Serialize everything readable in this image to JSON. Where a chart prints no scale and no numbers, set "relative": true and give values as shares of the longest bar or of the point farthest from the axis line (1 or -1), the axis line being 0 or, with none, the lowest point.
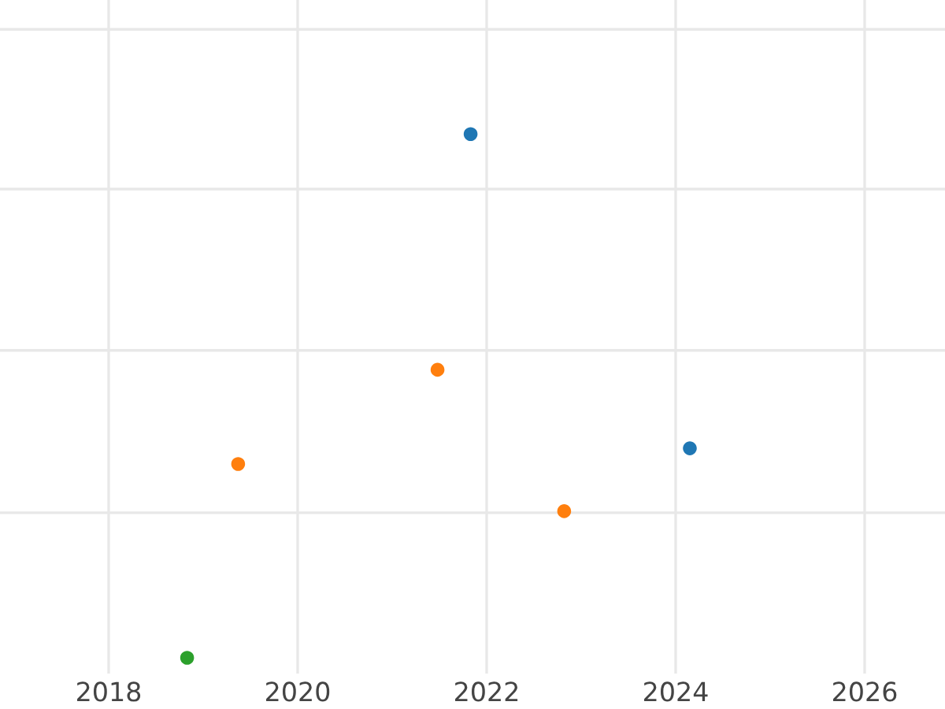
{
  "chart_data": {
    "type": "scatter",
    "relative": true,
    "grid": true,
    "legend": false,
    "marker": "circle",
    "xlim": [
      2016.85,
      2026.85
    ],
    "xticks": [
      2018,
      2020,
      2022,
      2024,
      2026
    ],
    "series": [
      {
        "color": "#1f77b4",
        "x": [
          2021.83,
          2024.15
        ],
        "values": [
          1.0,
          0.4
        ]
      },
      {
        "color": "#ff7f0e",
        "x": [
          2019.37,
          2021.48,
          2022.82
        ],
        "values": [
          0.37,
          0.55,
          0.28
        ]
      },
      {
        "color": "#2ca02c",
        "x": [
          2018.83
        ],
        "values": [
          0.0
        ]
      }
    ]
  }
}
